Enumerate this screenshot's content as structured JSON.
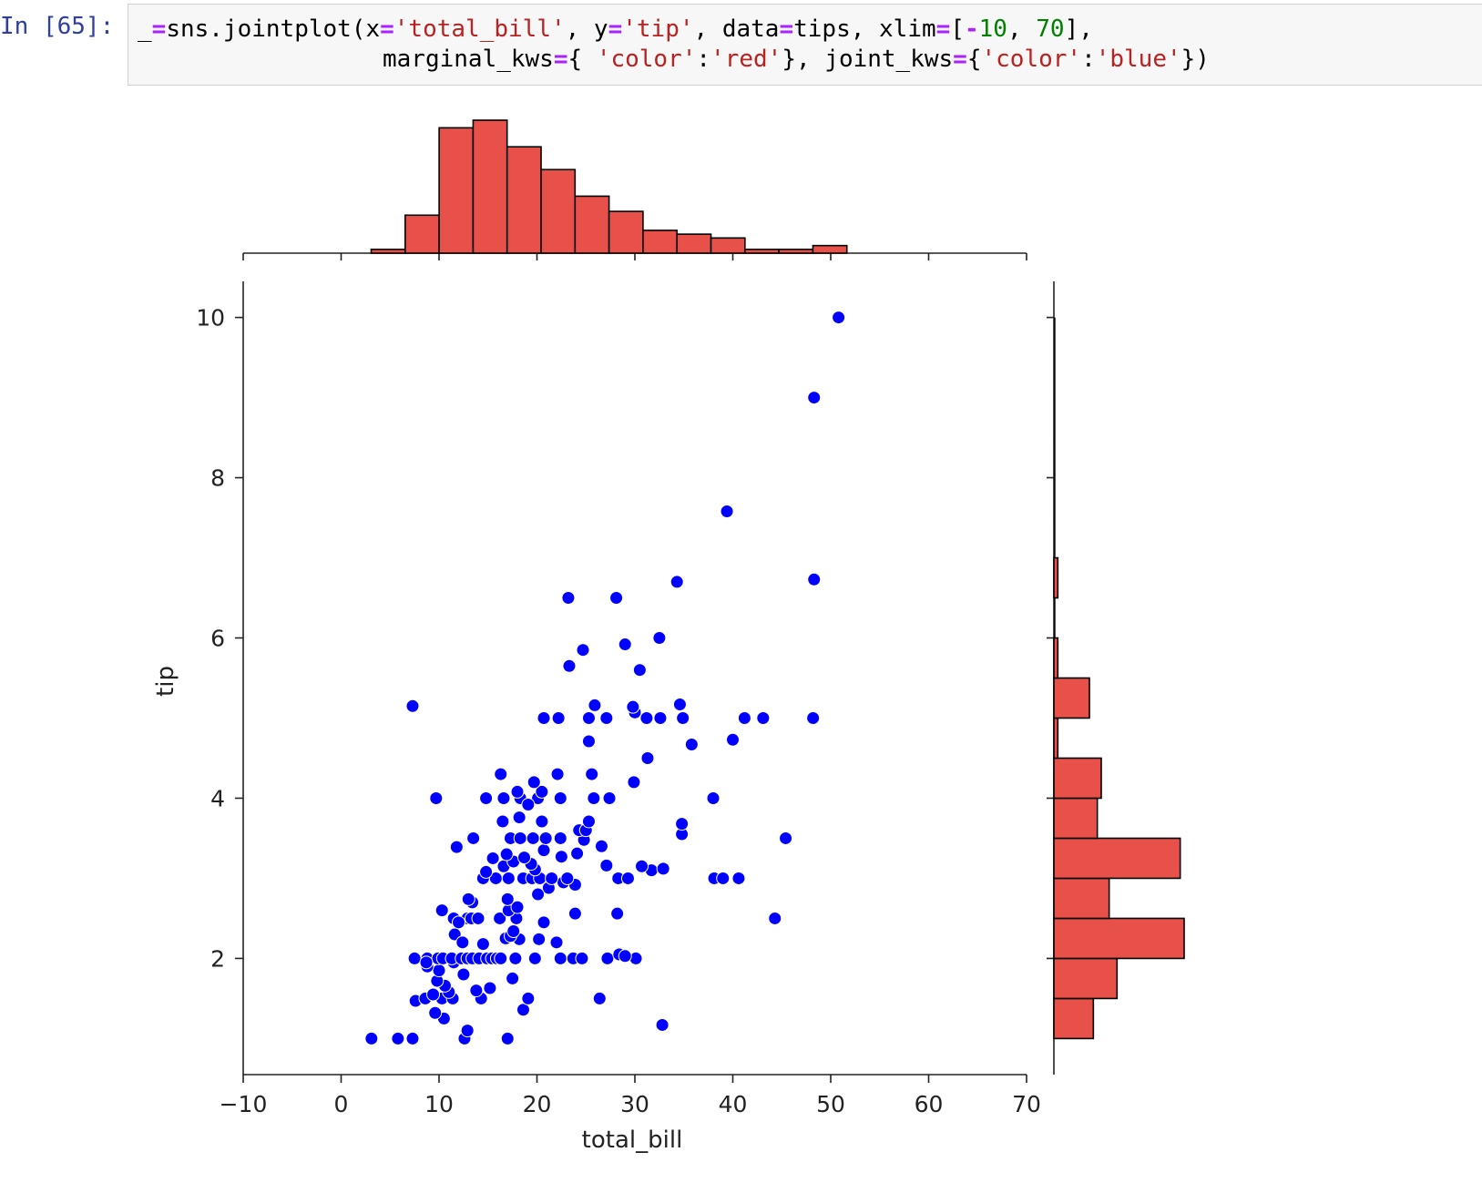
{
  "cell": {
    "prompt": "In [65]:",
    "code_line_1": [
      {
        "t": "_",
        "k": "plain"
      },
      {
        "t": "=",
        "k": "op"
      },
      {
        "t": "sns.jointplot(x",
        "k": "plain"
      },
      {
        "t": "=",
        "k": "op"
      },
      {
        "t": "'total_bill'",
        "k": "str"
      },
      {
        "t": ", y",
        "k": "plain"
      },
      {
        "t": "=",
        "k": "op"
      },
      {
        "t": "'tip'",
        "k": "str"
      },
      {
        "t": ", data",
        "k": "plain"
      },
      {
        "t": "=",
        "k": "op"
      },
      {
        "t": "tips, xlim",
        "k": "plain"
      },
      {
        "t": "=",
        "k": "op"
      },
      {
        "t": "[",
        "k": "plain"
      },
      {
        "t": "-",
        "k": "op"
      },
      {
        "t": "10",
        "k": "num"
      },
      {
        "t": ", ",
        "k": "plain"
      },
      {
        "t": "70",
        "k": "num"
      },
      {
        "t": "],",
        "k": "plain"
      }
    ],
    "code_line_2": [
      {
        "t": "marginal_kws",
        "k": "plain"
      },
      {
        "t": "=",
        "k": "op"
      },
      {
        "t": "{ ",
        "k": "plain"
      },
      {
        "t": "'color'",
        "k": "str"
      },
      {
        "t": ":",
        "k": "plain"
      },
      {
        "t": "'red'",
        "k": "str"
      },
      {
        "t": "}, joint_kws",
        "k": "plain"
      },
      {
        "t": "=",
        "k": "op"
      },
      {
        "t": "{",
        "k": "plain"
      },
      {
        "t": "'color'",
        "k": "str"
      },
      {
        "t": ":",
        "k": "plain"
      },
      {
        "t": "'blue'",
        "k": "str"
      },
      {
        "t": "})",
        "k": "plain"
      }
    ]
  },
  "colors": {
    "scatter": "#0000ff",
    "histogram_fill": "#e8504a",
    "histogram_edge": "#000000",
    "prompt": "#303f9f"
  },
  "chart_data": {
    "type": "scatter",
    "xlabel": "total_bill",
    "ylabel": "tip",
    "xlim": [
      -10,
      70
    ],
    "ylim": [
      0.55,
      10.45
    ],
    "xticks": [
      -10,
      0,
      10,
      20,
      30,
      40,
      50,
      60,
      70
    ],
    "xtick_labels": [
      "−10",
      "0",
      "10",
      "20",
      "30",
      "40",
      "50",
      "60",
      "70"
    ],
    "yticks": [
      2,
      4,
      6,
      8,
      10
    ],
    "ytick_labels": [
      "2",
      "4",
      "6",
      "8",
      "10"
    ],
    "points": [
      [
        3.1,
        1.0
      ],
      [
        5.8,
        1.0
      ],
      [
        7.3,
        1.0
      ],
      [
        12.6,
        1.0
      ],
      [
        17.0,
        1.0
      ],
      [
        12.9,
        1.1
      ],
      [
        32.8,
        1.17
      ],
      [
        10.5,
        1.25
      ],
      [
        9.6,
        1.32
      ],
      [
        18.6,
        1.36
      ],
      [
        7.6,
        1.47
      ],
      [
        8.6,
        1.5
      ],
      [
        10.3,
        1.5
      ],
      [
        11.4,
        1.5
      ],
      [
        14.3,
        1.5
      ],
      [
        19.1,
        1.5
      ],
      [
        26.4,
        1.5
      ],
      [
        9.4,
        1.55
      ],
      [
        11.0,
        1.58
      ],
      [
        13.8,
        1.6
      ],
      [
        15.2,
        1.63
      ],
      [
        10.6,
        1.66
      ],
      [
        9.8,
        1.72
      ],
      [
        17.5,
        1.75
      ],
      [
        12.5,
        1.8
      ],
      [
        10.0,
        1.85
      ],
      [
        8.8,
        1.9
      ],
      [
        11.5,
        1.95
      ],
      [
        7.5,
        2.0
      ],
      [
        8.8,
        2.0
      ],
      [
        9.9,
        2.0
      ],
      [
        10.4,
        2.0
      ],
      [
        11.3,
        2.0
      ],
      [
        12.3,
        2.0
      ],
      [
        12.9,
        2.0
      ],
      [
        13.4,
        2.0
      ],
      [
        14.1,
        2.0
      ],
      [
        14.9,
        2.0
      ],
      [
        15.4,
        2.0
      ],
      [
        15.9,
        2.0
      ],
      [
        16.3,
        2.0
      ],
      [
        17.8,
        2.0
      ],
      [
        19.8,
        2.0
      ],
      [
        22.4,
        2.0
      ],
      [
        23.7,
        2.0
      ],
      [
        24.6,
        2.0
      ],
      [
        27.2,
        2.0
      ],
      [
        30.1,
        2.0
      ],
      [
        28.4,
        2.05
      ],
      [
        29.0,
        2.03
      ],
      [
        8.7,
        1.95
      ],
      [
        14.5,
        2.18
      ],
      [
        18.2,
        2.24
      ],
      [
        22.0,
        2.2
      ],
      [
        16.8,
        2.25
      ],
      [
        11.6,
        2.3
      ],
      [
        12.4,
        2.2
      ],
      [
        17.3,
        2.28
      ],
      [
        20.2,
        2.24
      ],
      [
        17.6,
        2.34
      ],
      [
        10.3,
        2.6
      ],
      [
        11.5,
        2.5
      ],
      [
        12.9,
        2.5
      ],
      [
        13.3,
        2.5
      ],
      [
        14.0,
        2.5
      ],
      [
        16.2,
        2.5
      ],
      [
        17.9,
        2.5
      ],
      [
        20.7,
        2.45
      ],
      [
        12.0,
        2.45
      ],
      [
        17.1,
        2.6
      ],
      [
        18.0,
        2.64
      ],
      [
        23.9,
        2.56
      ],
      [
        28.2,
        2.56
      ],
      [
        44.3,
        2.5
      ],
      [
        13.4,
        2.7
      ],
      [
        17.0,
        2.74
      ],
      [
        13.0,
        2.74
      ],
      [
        21.2,
        2.88
      ],
      [
        22.7,
        2.95
      ],
      [
        23.9,
        2.92
      ],
      [
        20.1,
        2.8
      ],
      [
        14.5,
        3.0
      ],
      [
        15.8,
        3.0
      ],
      [
        17.1,
        3.0
      ],
      [
        18.6,
        3.0
      ],
      [
        19.5,
        3.0
      ],
      [
        20.3,
        3.0
      ],
      [
        21.5,
        3.0
      ],
      [
        23.1,
        3.0
      ],
      [
        28.3,
        3.0
      ],
      [
        29.3,
        3.0
      ],
      [
        38.1,
        3.0
      ],
      [
        39.0,
        3.0
      ],
      [
        40.6,
        3.0
      ],
      [
        14.8,
        3.08
      ],
      [
        19.8,
        3.11
      ],
      [
        31.7,
        3.1
      ],
      [
        32.9,
        3.12
      ],
      [
        30.7,
        3.15
      ],
      [
        27.1,
        3.16
      ],
      [
        16.6,
        3.15
      ],
      [
        17.6,
        3.21
      ],
      [
        19.4,
        3.18
      ],
      [
        22.5,
        3.27
      ],
      [
        15.5,
        3.25
      ],
      [
        18.7,
        3.26
      ],
      [
        16.9,
        3.3
      ],
      [
        24.1,
        3.31
      ],
      [
        26.6,
        3.4
      ],
      [
        11.8,
        3.39
      ],
      [
        20.7,
        3.35
      ],
      [
        17.3,
        3.5
      ],
      [
        13.5,
        3.5
      ],
      [
        18.3,
        3.5
      ],
      [
        19.6,
        3.5
      ],
      [
        20.9,
        3.5
      ],
      [
        22.4,
        3.5
      ],
      [
        24.8,
        3.48
      ],
      [
        45.4,
        3.5
      ],
      [
        34.8,
        3.55
      ],
      [
        24.3,
        3.6
      ],
      [
        25.0,
        3.6
      ],
      [
        25.3,
        3.71
      ],
      [
        34.8,
        3.68
      ],
      [
        20.5,
        3.71
      ],
      [
        16.5,
        3.71
      ],
      [
        18.2,
        3.76
      ],
      [
        9.7,
        4.0
      ],
      [
        14.8,
        4.0
      ],
      [
        16.6,
        4.0
      ],
      [
        18.3,
        4.0
      ],
      [
        20.1,
        4.0
      ],
      [
        22.4,
        4.0
      ],
      [
        25.8,
        4.0
      ],
      [
        27.4,
        4.0
      ],
      [
        38.0,
        4.0
      ],
      [
        19.1,
        3.92
      ],
      [
        20.5,
        4.08
      ],
      [
        18.0,
        4.08
      ],
      [
        22.1,
        4.3
      ],
      [
        25.6,
        4.3
      ],
      [
        16.3,
        4.3
      ],
      [
        29.9,
        4.2
      ],
      [
        31.3,
        4.5
      ],
      [
        19.7,
        4.2
      ],
      [
        25.3,
        4.71
      ],
      [
        35.8,
        4.67
      ],
      [
        40.0,
        4.73
      ],
      [
        41.2,
        5.0
      ],
      [
        43.1,
        5.0
      ],
      [
        48.2,
        5.0
      ],
      [
        20.7,
        5.0
      ],
      [
        22.2,
        5.0
      ],
      [
        25.3,
        5.0
      ],
      [
        27.1,
        5.0
      ],
      [
        31.2,
        5.0
      ],
      [
        32.6,
        5.0
      ],
      [
        34.9,
        5.0
      ],
      [
        30.0,
        5.07
      ],
      [
        29.8,
        5.14
      ],
      [
        34.6,
        5.17
      ],
      [
        25.9,
        5.16
      ],
      [
        7.3,
        5.15
      ],
      [
        30.5,
        5.6
      ],
      [
        23.3,
        5.65
      ],
      [
        24.7,
        5.85
      ],
      [
        29.0,
        5.92
      ],
      [
        32.5,
        6.0
      ],
      [
        23.2,
        6.5
      ],
      [
        28.1,
        6.5
      ],
      [
        34.3,
        6.7
      ],
      [
        48.3,
        6.73
      ],
      [
        39.4,
        7.58
      ],
      [
        48.3,
        9.0
      ],
      [
        50.8,
        10.0
      ]
    ],
    "marginal_x": {
      "orientation": "vertical",
      "bin_edges": [
        3.07,
        6.54,
        10.01,
        13.48,
        16.95,
        20.42,
        23.89,
        27.36,
        30.83,
        34.3,
        37.77,
        41.24,
        44.71,
        48.18,
        51.65
      ],
      "counts": [
        1,
        10,
        33,
        35,
        28,
        22,
        15,
        11,
        6,
        5,
        4,
        1,
        1,
        2
      ]
    },
    "marginal_y": {
      "orientation": "horizontal",
      "bin_edges": [
        1.0,
        1.5,
        2.0,
        2.5,
        3.0,
        3.5,
        4.0,
        4.5,
        5.0,
        5.5,
        6.0,
        6.5,
        7.0,
        7.5,
        8.0,
        8.5,
        9.0,
        9.5,
        10.0
      ],
      "counts": [
        10,
        16,
        33,
        14,
        32,
        11,
        12,
        1,
        9,
        1,
        0,
        1,
        0,
        0,
        0,
        0,
        0,
        0
      ]
    }
  }
}
